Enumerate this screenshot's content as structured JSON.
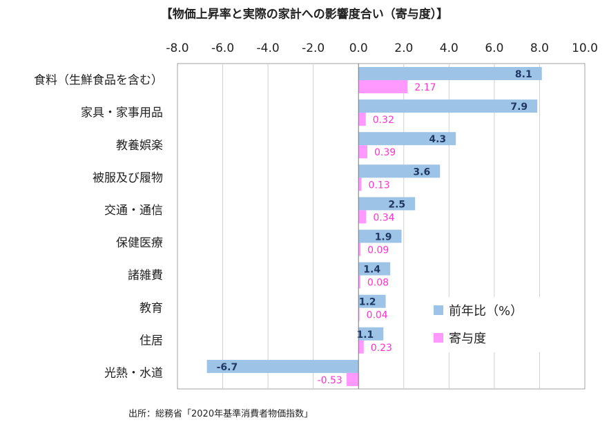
{
  "chart_data": {
    "type": "bar",
    "orientation": "horizontal",
    "title": "【物価上昇率と実際の家計への影響度合い（寄与度）】",
    "categories": [
      "食料（生鮮食品を含む）",
      "家具・家事用品",
      "教養娯楽",
      "被服及び履物",
      "交通・通信",
      "保健医療",
      "諸雑費",
      "教育",
      "住居",
      "光熱・水道"
    ],
    "series": [
      {
        "name": "前年比（%）",
        "color": "#9dc3e6",
        "label_color": "#1f3864",
        "values": [
          8.1,
          7.9,
          4.3,
          3.6,
          2.5,
          1.9,
          1.4,
          1.2,
          1.1,
          -6.7
        ]
      },
      {
        "name": "寄与度",
        "color": "#ff99ff",
        "label_color": "#ff33cc",
        "values": [
          2.17,
          0.32,
          0.39,
          0.13,
          0.34,
          0.09,
          0.08,
          0.04,
          0.23,
          -0.53
        ]
      }
    ],
    "series_labels": [
      [
        "8.1",
        "7.9",
        "4.3",
        "3.6",
        "2.5",
        "1.9",
        "1.4",
        "1.2",
        "1.1",
        "-6.7"
      ],
      [
        "2.17",
        "0.32",
        "0.39",
        "0.13",
        "0.34",
        "0.09",
        "0.08",
        "0.04",
        "0.23",
        "-0.53"
      ]
    ],
    "xlim": [
      -8,
      10
    ],
    "xticks": [
      "-8.0",
      "-6.0",
      "-4.0",
      "-2.0",
      "0.0",
      "2.0",
      "4.0",
      "6.0",
      "8.0",
      "10.0"
    ],
    "x_axis_position": "top",
    "grid": true,
    "legend_position": "bottom-right"
  },
  "source_note": "出所：総務省「2020年基準消費者物価指数」"
}
